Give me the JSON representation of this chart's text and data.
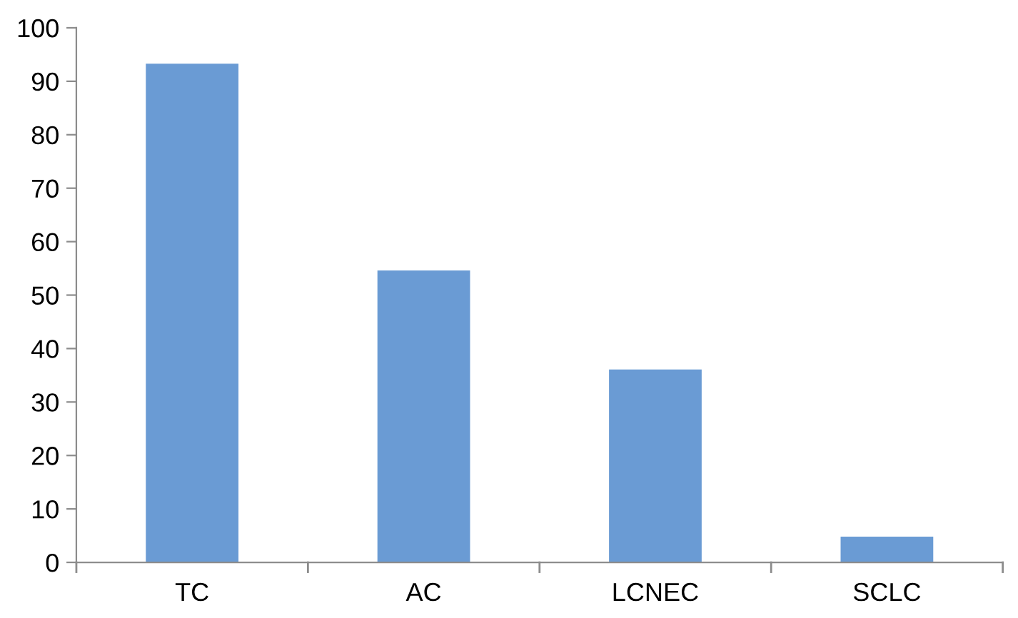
{
  "chart_data": {
    "type": "bar",
    "categories": [
      "TC",
      "AC",
      "LCNEC",
      "SCLC"
    ],
    "values": [
      93.3,
      54.6,
      36.1,
      4.8
    ],
    "color": "#6a9bd4",
    "ylim": [
      0,
      100
    ],
    "yticks": [
      0,
      10,
      20,
      30,
      40,
      50,
      60,
      70,
      80,
      90,
      100
    ],
    "grid": false
  }
}
